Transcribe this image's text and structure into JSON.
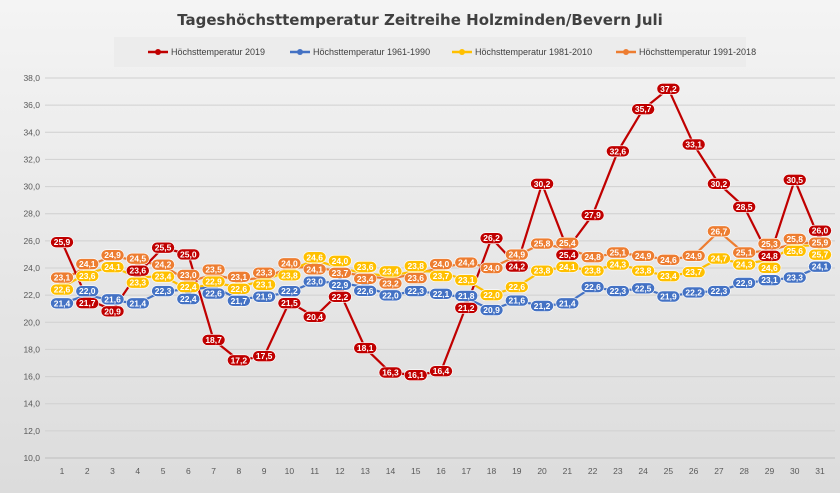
{
  "chart_data": {
    "type": "line",
    "title": "Tageshöchsttemperatur Zeitreihe Holzminden/Bevern Juli",
    "xlabel": "",
    "ylabel": "",
    "categories": [
      "1",
      "2",
      "3",
      "4",
      "5",
      "6",
      "7",
      "8",
      "9",
      "10",
      "11",
      "12",
      "13",
      "14",
      "15",
      "16",
      "17",
      "18",
      "19",
      "20",
      "21",
      "22",
      "23",
      "24",
      "25",
      "26",
      "27",
      "28",
      "29",
      "30",
      "31"
    ],
    "ylim": [
      10,
      38
    ],
    "yticks": [
      "10,0",
      "12,0",
      "14,0",
      "16,0",
      "18,0",
      "20,0",
      "22,0",
      "24,0",
      "26,0",
      "28,0",
      "30,0",
      "32,0",
      "34,0",
      "36,0",
      "38,0"
    ],
    "grid": true,
    "legend_position": "top",
    "series": [
      {
        "name": "Höchsttemperatur 1991-2018",
        "color": "#ED7D31",
        "values": [
          23.1,
          24.1,
          24.9,
          24.5,
          24.2,
          23.0,
          23.5,
          23.1,
          23.3,
          24.0,
          24.1,
          23.7,
          23.4,
          23.2,
          23.6,
          24.0,
          24.4,
          24.0,
          24.9,
          25.8,
          25.4,
          24.8,
          25.1,
          24.9,
          24.6,
          24.9,
          26.7,
          25.1,
          25.3,
          25.8,
          25.9
        ]
      },
      {
        "name": "Höchsttemperatur 1981-2010",
        "color": "#FFC000",
        "values": [
          22.6,
          23.6,
          24.1,
          23.3,
          23.4,
          22.4,
          22.9,
          22.6,
          23.1,
          23.8,
          24.6,
          24.0,
          23.6,
          23.4,
          23.8,
          23.7,
          23.1,
          22.0,
          22.6,
          23.8,
          24.1,
          23.8,
          24.3,
          23.8,
          23.4,
          23.7,
          24.7,
          24.3,
          24.6,
          25.6,
          25.7
        ]
      },
      {
        "name": "Höchsttemperatur 1961-1990",
        "color": "#4472C4",
        "values": [
          21.4,
          22.0,
          21.6,
          21.4,
          22.3,
          22.4,
          22.6,
          21.7,
          21.9,
          22.2,
          23.0,
          22.9,
          22.6,
          22.0,
          22.3,
          22.1,
          21.8,
          20.9,
          21.6,
          21.2,
          21.4,
          22.6,
          22.3,
          22.5,
          21.9,
          22.2,
          22.3,
          22.9,
          23.1,
          23.3,
          24.1
        ]
      },
      {
        "name": "Höchsttemperatur 2019",
        "color": "#C00000",
        "values": [
          25.9,
          21.7,
          20.9,
          23.6,
          25.5,
          25.0,
          18.7,
          17.2,
          17.5,
          21.5,
          20.4,
          22.2,
          18.1,
          16.3,
          16.1,
          16.4,
          21.2,
          26.2,
          24.2,
          30.2,
          25.4,
          27.9,
          32.6,
          35.7,
          37.2,
          33.1,
          30.2,
          28.5,
          24.8,
          30.5,
          26.0
        ]
      }
    ],
    "legend_order": [
      "Höchsttemperatur 2019",
      "Höchsttemperatur 1961-1990",
      "Höchsttemperatur 1981-2010",
      "Höchsttemperatur 1991-2018"
    ]
  }
}
